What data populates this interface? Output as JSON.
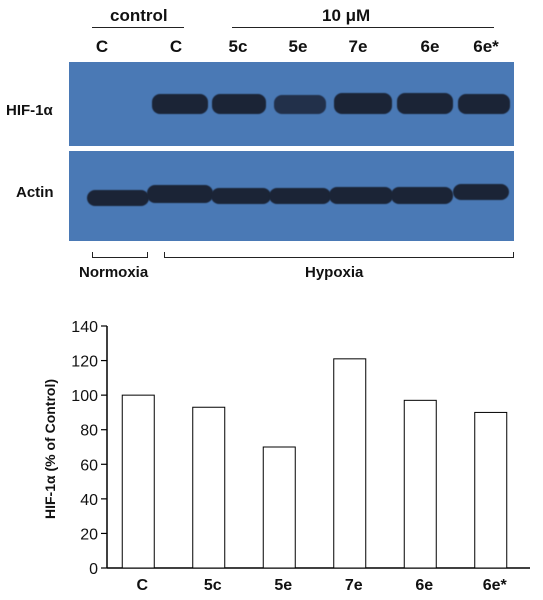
{
  "blot": {
    "group_labels": {
      "control": "control",
      "treatment": "10 μM"
    },
    "lanes": [
      "C",
      "C",
      "5c",
      "5e",
      "7e",
      "6e",
      "6e*"
    ],
    "rows": [
      "HIF-1α",
      "Actin"
    ],
    "conditions": [
      "Normoxia",
      "Hypoxia"
    ]
  },
  "chart_data": {
    "type": "bar",
    "categories": [
      "C",
      "5c",
      "5e",
      "7e",
      "6e",
      "6e*"
    ],
    "values": [
      100,
      93,
      70,
      121,
      97,
      90
    ],
    "xlabel": "",
    "ylabel": "HIF-1α (% of Control)",
    "ylim": [
      0,
      140
    ],
    "yticks": [
      0,
      20,
      40,
      60,
      80,
      100,
      120,
      140
    ],
    "grid": false,
    "bar_fill": "#ffffff",
    "bar_edge": "#000000"
  }
}
